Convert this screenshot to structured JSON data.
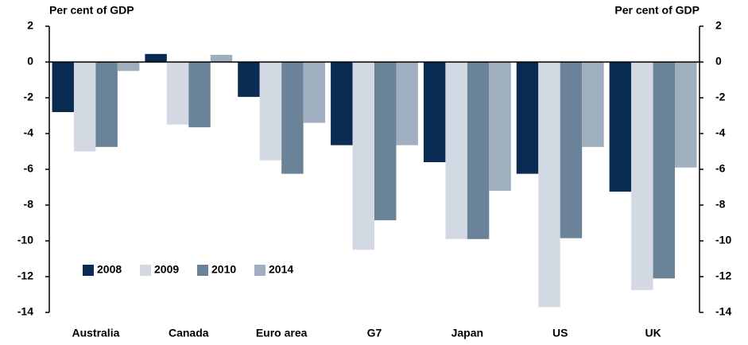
{
  "chart_data": {
    "type": "bar",
    "y_label": "Per cent of GDP",
    "y2_label": "Per cent of GDP",
    "categories": [
      "Australia",
      "Canada",
      "Euro area",
      "G7",
      "Japan",
      "US",
      "UK"
    ],
    "series": [
      {
        "name": "2008",
        "color": "#0a2b52",
        "values": [
          -2.8,
          0.45,
          -1.95,
          -4.65,
          -5.6,
          -6.25,
          -7.25
        ]
      },
      {
        "name": "2009",
        "color": "#d3d9e3",
        "values": [
          -5.0,
          -3.5,
          -5.5,
          -10.5,
          -9.9,
          -13.7,
          -12.75
        ]
      },
      {
        "name": "2010",
        "color": "#6b8399",
        "values": [
          -4.75,
          -3.65,
          -6.25,
          -8.85,
          -9.9,
          -9.85,
          -12.1
        ]
      },
      {
        "name": "2014",
        "color": "#a0afbf",
        "values": [
          -0.5,
          0.4,
          -3.4,
          -4.65,
          -7.2,
          -4.75,
          -5.9
        ]
      }
    ],
    "ylim": [
      -14,
      2
    ],
    "yticks": [
      2,
      0,
      -2,
      -4,
      -6,
      -8,
      -10,
      -12,
      -14
    ],
    "y2lim": [
      -14,
      2
    ],
    "y2ticks": [
      2,
      0,
      -2,
      -4,
      -6,
      -8,
      -10,
      -12,
      -14
    ],
    "legend": "lower left"
  }
}
